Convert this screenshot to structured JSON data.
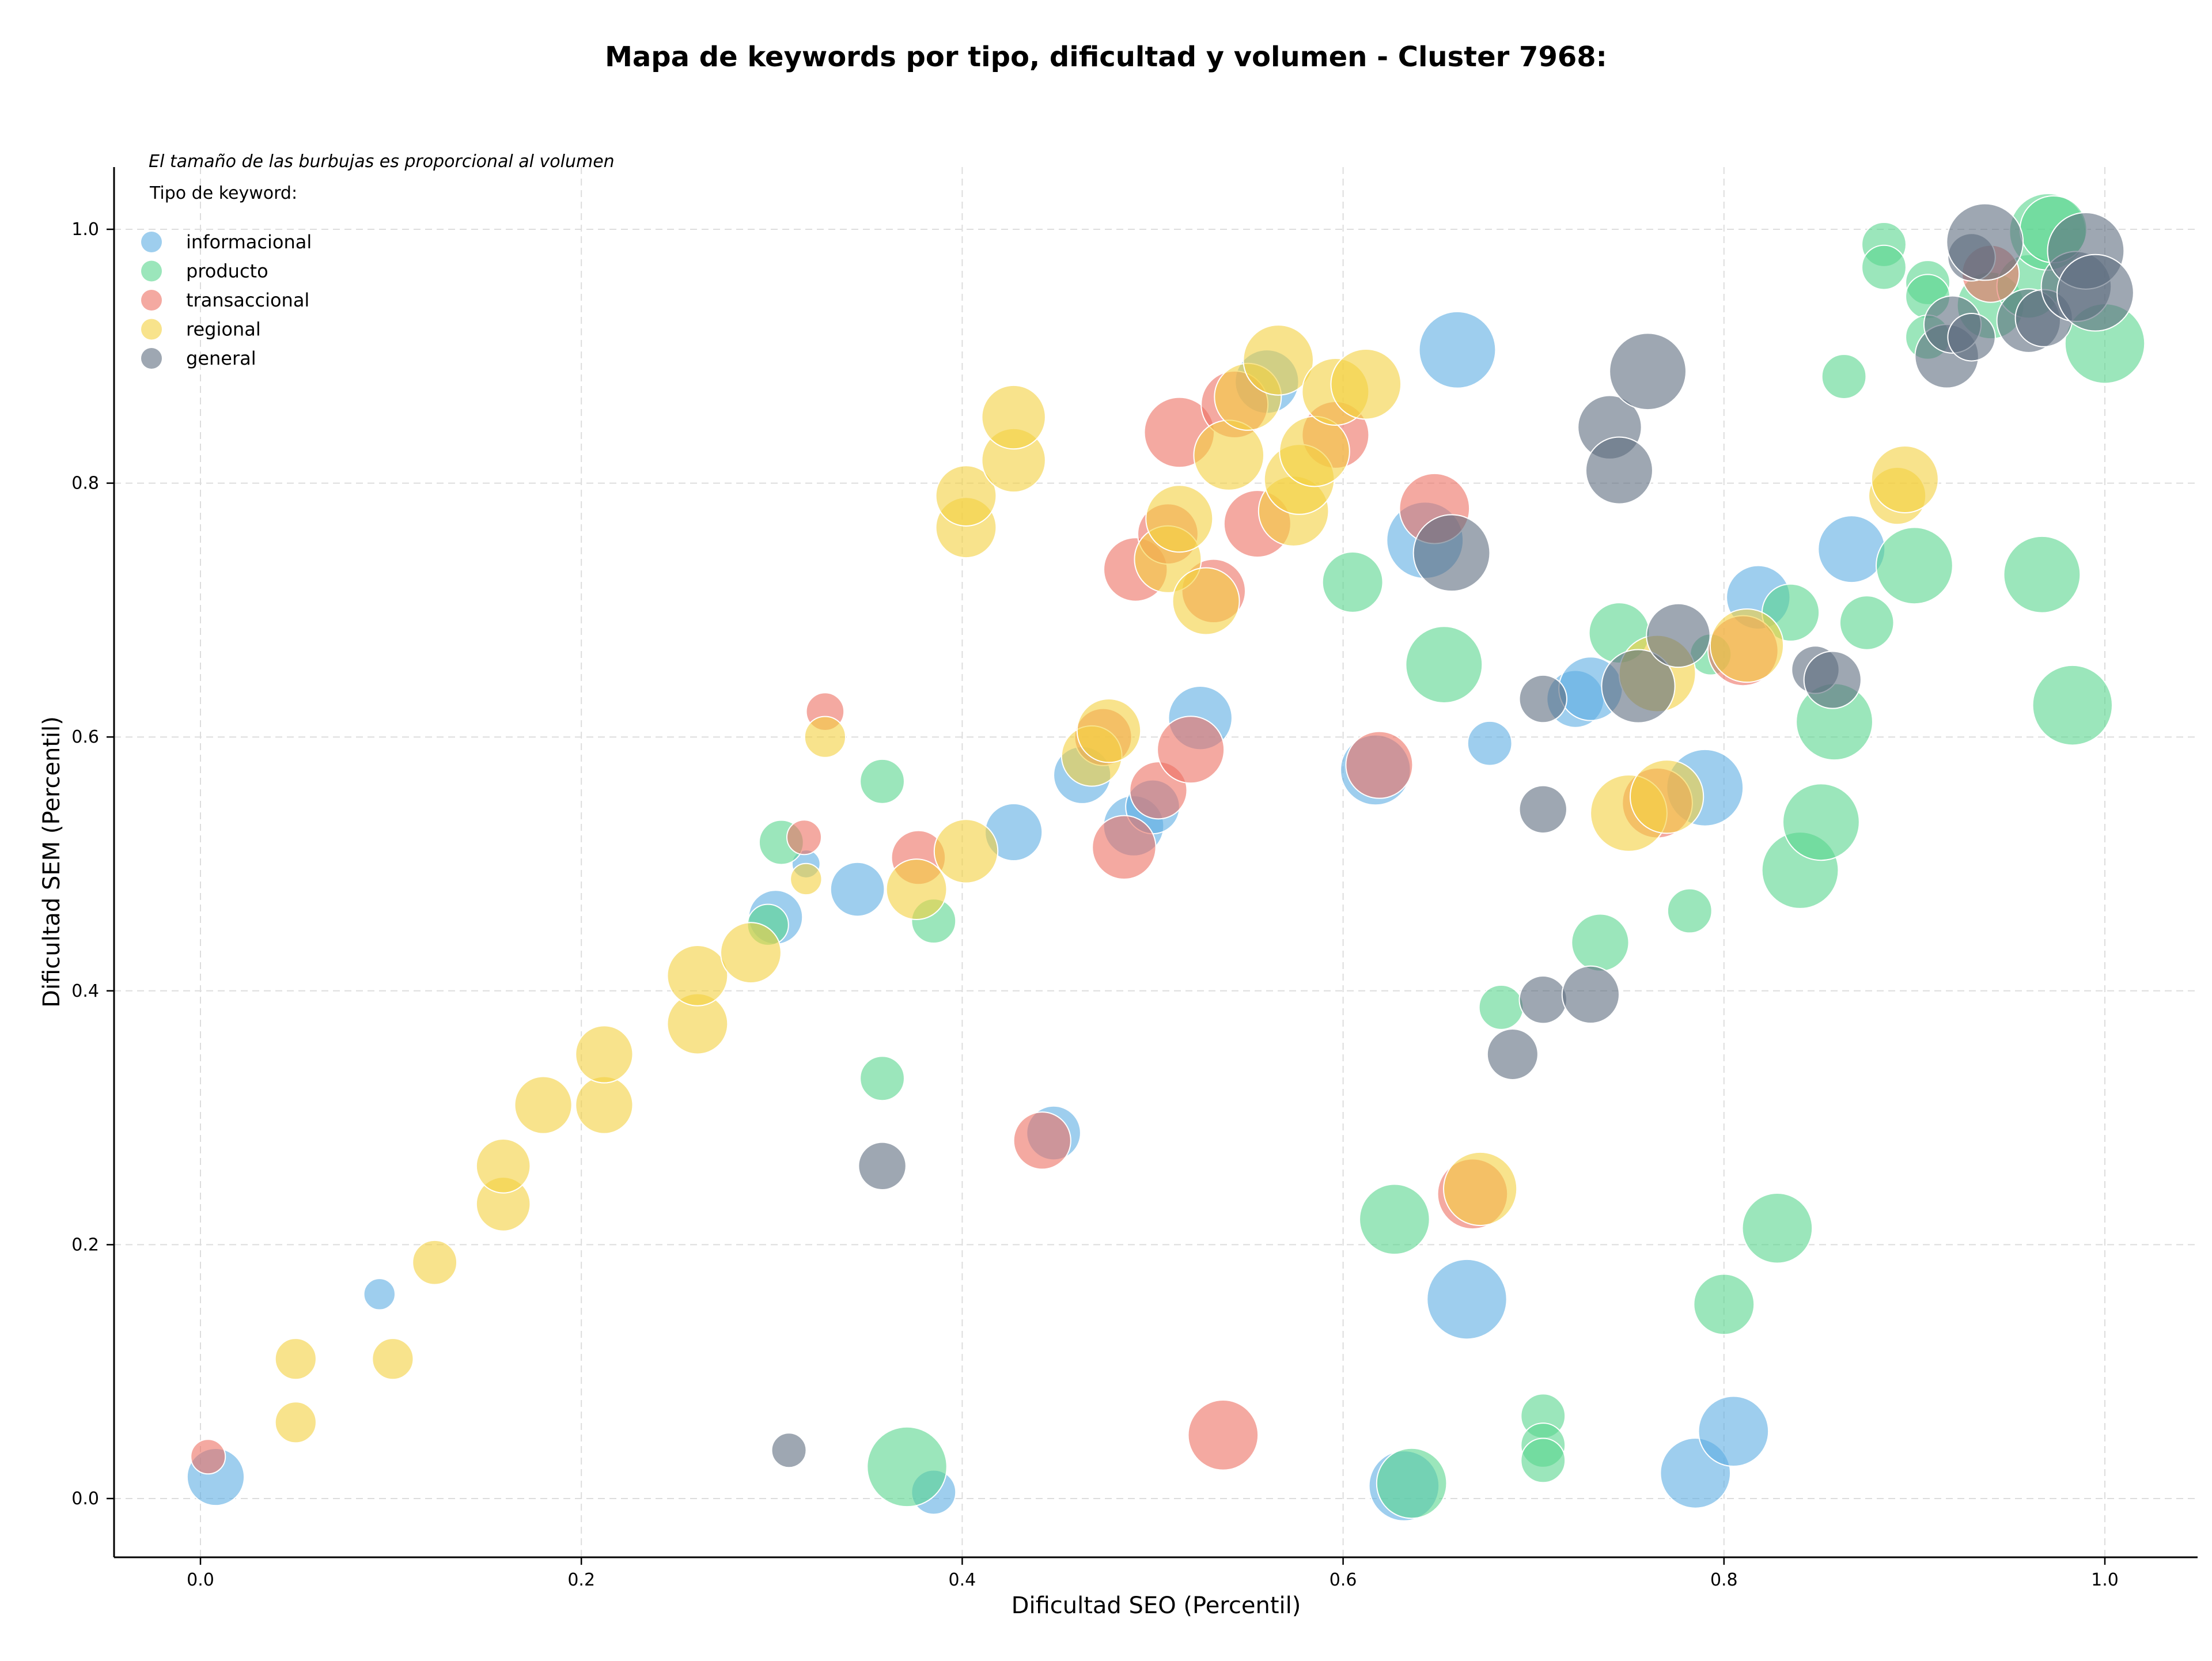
{
  "chart_data": {
    "type": "scatter",
    "title": "Mapa de keywords por tipo, dificultad y volumen - Cluster 7968:",
    "xlabel": "Dificultad SEO (Percentil)",
    "ylabel": "Dificultad SEM (Percentil)",
    "xlim": [
      -0.045,
      1.05
    ],
    "ylim": [
      -0.045,
      1.05
    ],
    "xticks": [
      0.0,
      0.2,
      0.4,
      0.6,
      0.8,
      1.0
    ],
    "yticks": [
      0.0,
      0.2,
      0.4,
      0.6,
      0.8,
      1.0
    ],
    "xtick_labels": [
      "0.0",
      "0.2",
      "0.4",
      "0.6",
      "0.8",
      "1.0"
    ],
    "ytick_labels": [
      "0.0",
      "0.2",
      "0.4",
      "0.6",
      "0.8",
      "1.0"
    ],
    "grid": true,
    "note": "El tamaño de las burbujas es proporcional al volumen",
    "legend_title": "Tipo de keyword:",
    "legend_position": "top-left",
    "series": [
      {
        "name": "informacional",
        "color": "#5dade2",
        "points": [
          [
            0.008,
            0.017,
            0.6
          ],
          [
            0.094,
            0.161,
            0.2
          ],
          [
            0.318,
            0.5,
            0.15
          ],
          [
            0.302,
            0.458,
            0.55
          ],
          [
            0.345,
            0.48,
            0.55
          ],
          [
            0.385,
            0.005,
            0.4
          ],
          [
            0.427,
            0.525,
            0.6
          ],
          [
            0.463,
            0.57,
            0.6
          ],
          [
            0.448,
            0.288,
            0.55
          ],
          [
            0.49,
            0.53,
            0.65
          ],
          [
            0.5,
            0.545,
            0.55
          ],
          [
            0.525,
            0.615,
            0.7
          ],
          [
            0.56,
            0.88,
            0.7
          ],
          [
            0.617,
            0.574,
            0.8
          ],
          [
            0.643,
            0.755,
            0.9
          ],
          [
            0.66,
            0.905,
            0.9
          ],
          [
            0.632,
            0.01,
            0.8
          ],
          [
            0.665,
            0.157,
            0.95
          ],
          [
            0.677,
            0.595,
            0.4
          ],
          [
            0.722,
            0.63,
            0.6
          ],
          [
            0.73,
            0.638,
            0.7
          ],
          [
            0.79,
            0.56,
            0.9
          ],
          [
            0.785,
            0.02,
            0.8
          ],
          [
            0.805,
            0.053,
            0.8
          ],
          [
            0.818,
            0.71,
            0.7
          ],
          [
            0.867,
            0.748,
            0.75
          ]
        ]
      },
      {
        "name": "producto",
        "color": "#58d68d",
        "points": [
          [
            0.305,
            0.517,
            0.4
          ],
          [
            0.298,
            0.452,
            0.35
          ],
          [
            0.358,
            0.565,
            0.4
          ],
          [
            0.358,
            0.331,
            0.4
          ],
          [
            0.385,
            0.455,
            0.4
          ],
          [
            0.371,
            0.025,
            0.95
          ],
          [
            0.605,
            0.722,
            0.65
          ],
          [
            0.627,
            0.22,
            0.8
          ],
          [
            0.636,
            0.012,
            0.8
          ],
          [
            0.653,
            0.657,
            0.9
          ],
          [
            0.683,
            0.387,
            0.4
          ],
          [
            0.705,
            0.065,
            0.4
          ],
          [
            0.705,
            0.042,
            0.4
          ],
          [
            0.705,
            0.03,
            0.4
          ],
          [
            0.735,
            0.438,
            0.6
          ],
          [
            0.745,
            0.682,
            0.65
          ],
          [
            0.782,
            0.463,
            0.4
          ],
          [
            0.793,
            0.665,
            0.35
          ],
          [
            0.8,
            0.153,
            0.65
          ],
          [
            0.828,
            0.213,
            0.8
          ],
          [
            0.84,
            0.495,
            0.9
          ],
          [
            0.835,
            0.698,
            0.6
          ],
          [
            0.851,
            0.533,
            0.9
          ],
          [
            0.858,
            0.612,
            0.9
          ],
          [
            0.863,
            0.884,
            0.4
          ],
          [
            0.875,
            0.69,
            0.55
          ],
          [
            0.9,
            0.735,
            0.9
          ],
          [
            0.884,
            0.988,
            0.4
          ],
          [
            0.884,
            0.97,
            0.4
          ],
          [
            0.907,
            0.958,
            0.4
          ],
          [
            0.907,
            0.947,
            0.4
          ],
          [
            0.907,
            0.915,
            0.4
          ],
          [
            0.94,
            0.94,
            0.75
          ],
          [
            0.96,
            0.955,
            0.7
          ],
          [
            0.967,
            0.728,
            0.9
          ],
          [
            0.97,
            0.998,
            0.9
          ],
          [
            0.973,
            1.0,
            0.75
          ],
          [
            0.983,
            0.625,
            0.95
          ],
          [
            1.0,
            0.91,
            0.95
          ]
        ]
      },
      {
        "name": "transaccional",
        "color": "#ec7063",
        "points": [
          [
            0.004,
            0.033,
            0.25
          ],
          [
            0.317,
            0.521,
            0.25
          ],
          [
            0.328,
            0.62,
            0.3
          ],
          [
            0.377,
            0.505,
            0.55
          ],
          [
            0.442,
            0.282,
            0.6
          ],
          [
            0.474,
            0.6,
            0.6
          ],
          [
            0.485,
            0.513,
            0.7
          ],
          [
            0.491,
            0.732,
            0.7
          ],
          [
            0.503,
            0.558,
            0.6
          ],
          [
            0.508,
            0.76,
            0.65
          ],
          [
            0.514,
            0.84,
            0.8
          ],
          [
            0.52,
            0.59,
            0.75
          ],
          [
            0.532,
            0.715,
            0.7
          ],
          [
            0.537,
            0.05,
            0.8
          ],
          [
            0.543,
            0.862,
            0.75
          ],
          [
            0.555,
            0.768,
            0.75
          ],
          [
            0.596,
            0.838,
            0.75
          ],
          [
            0.619,
            0.578,
            0.75
          ],
          [
            0.648,
            0.78,
            0.8
          ],
          [
            0.668,
            0.24,
            0.8
          ],
          [
            0.765,
            0.548,
            0.8
          ],
          [
            0.81,
            0.668,
            0.8
          ],
          [
            0.94,
            0.965,
            0.6
          ]
        ]
      },
      {
        "name": "regional",
        "color": "#f4d03f",
        "points": [
          [
            0.05,
            0.06,
            0.35
          ],
          [
            0.05,
            0.11,
            0.35
          ],
          [
            0.101,
            0.11,
            0.35
          ],
          [
            0.123,
            0.186,
            0.4
          ],
          [
            0.159,
            0.232,
            0.55
          ],
          [
            0.159,
            0.262,
            0.55
          ],
          [
            0.18,
            0.31,
            0.6
          ],
          [
            0.212,
            0.31,
            0.6
          ],
          [
            0.212,
            0.35,
            0.6
          ],
          [
            0.261,
            0.374,
            0.65
          ],
          [
            0.261,
            0.412,
            0.65
          ],
          [
            0.289,
            0.43,
            0.65
          ],
          [
            0.318,
            0.488,
            0.2
          ],
          [
            0.328,
            0.6,
            0.35
          ],
          [
            0.376,
            0.48,
            0.65
          ],
          [
            0.402,
            0.765,
            0.65
          ],
          [
            0.402,
            0.79,
            0.65
          ],
          [
            0.402,
            0.51,
            0.7
          ],
          [
            0.427,
            0.818,
            0.7
          ],
          [
            0.427,
            0.852,
            0.7
          ],
          [
            0.468,
            0.585,
            0.65
          ],
          [
            0.477,
            0.605,
            0.7
          ],
          [
            0.508,
            0.74,
            0.75
          ],
          [
            0.514,
            0.772,
            0.75
          ],
          [
            0.528,
            0.707,
            0.75
          ],
          [
            0.54,
            0.822,
            0.8
          ],
          [
            0.55,
            0.868,
            0.75
          ],
          [
            0.566,
            0.897,
            0.8
          ],
          [
            0.574,
            0.778,
            0.8
          ],
          [
            0.577,
            0.803,
            0.8
          ],
          [
            0.585,
            0.825,
            0.8
          ],
          [
            0.596,
            0.872,
            0.75
          ],
          [
            0.612,
            0.878,
            0.8
          ],
          [
            0.672,
            0.244,
            0.85
          ],
          [
            0.75,
            0.54,
            0.9
          ],
          [
            0.765,
            0.65,
            0.9
          ],
          [
            0.77,
            0.553,
            0.85
          ],
          [
            0.812,
            0.672,
            0.85
          ],
          [
            0.891,
            0.79,
            0.6
          ],
          [
            0.895,
            0.803,
            0.75
          ]
        ]
      },
      {
        "name": "general",
        "color": "#5d6d7e",
        "points": [
          [
            0.309,
            0.038,
            0.25
          ],
          [
            0.358,
            0.262,
            0.45
          ],
          [
            0.657,
            0.745,
            0.9
          ],
          [
            0.689,
            0.35,
            0.5
          ],
          [
            0.705,
            0.63,
            0.45
          ],
          [
            0.705,
            0.543,
            0.45
          ],
          [
            0.705,
            0.393,
            0.45
          ],
          [
            0.73,
            0.397,
            0.6
          ],
          [
            0.74,
            0.844,
            0.7
          ],
          [
            0.745,
            0.81,
            0.75
          ],
          [
            0.755,
            0.64,
            0.85
          ],
          [
            0.76,
            0.888,
            0.9
          ],
          [
            0.776,
            0.68,
            0.7
          ],
          [
            0.848,
            0.653,
            0.45
          ],
          [
            0.857,
            0.645,
            0.6
          ],
          [
            0.917,
            0.9,
            0.7
          ],
          [
            0.92,
            0.925,
            0.6
          ],
          [
            0.93,
            0.978,
            0.45
          ],
          [
            0.93,
            0.915,
            0.45
          ],
          [
            0.937,
            0.99,
            0.9
          ],
          [
            0.96,
            0.928,
            0.7
          ],
          [
            0.968,
            0.93,
            0.6
          ],
          [
            0.985,
            0.955,
            0.8
          ],
          [
            0.99,
            0.983,
            0.9
          ],
          [
            0.995,
            0.95,
            0.9
          ]
        ]
      }
    ]
  }
}
